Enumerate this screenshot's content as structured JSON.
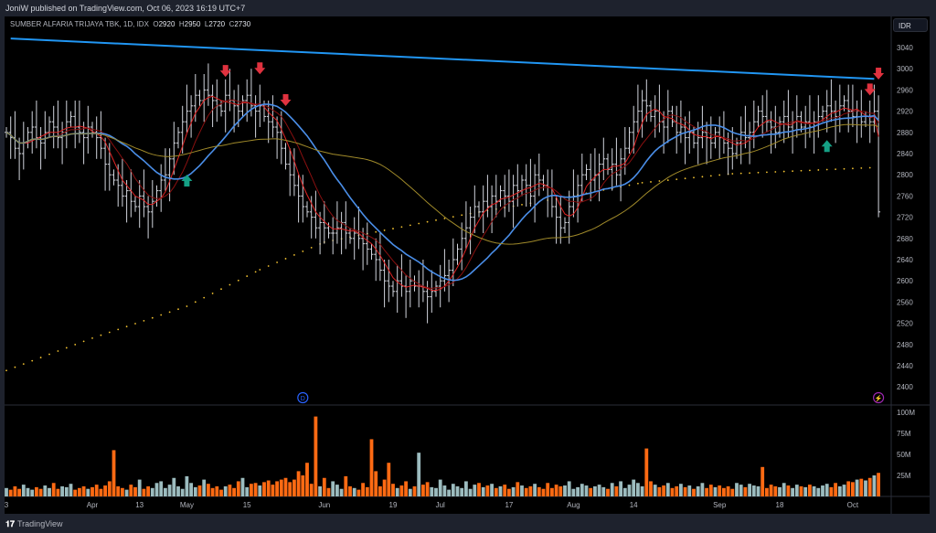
{
  "header": {
    "published": "JoniW published on TradingView.com, Oct 06, 2023 16:19 UTC+7"
  },
  "legend": {
    "symbol": "SUMBER ALFARIA TRIJAYA TBK, 1D, IDX",
    "o_label": "O",
    "o": "2920",
    "h_label": "H",
    "h": "2950",
    "l_label": "L",
    "l": "2720",
    "c_label": "C",
    "c": "2730"
  },
  "currency": "IDR",
  "footer": {
    "brand": "TradingView",
    "logo": "tradingview-logo"
  },
  "colors": {
    "background": "#000000",
    "bar": "#d1d4dc",
    "trendline": "#2196f3",
    "ma_fast": "#e02424",
    "ma_mid": "#8b1010",
    "ma_20": "#4a8ee8",
    "ma_50": "#a08a2a",
    "ma_200": "#f2c230",
    "vol_up": "#9cbcbf",
    "vol_down": "#ff6a13",
    "arrow_down": "#e0323f",
    "arrow_up": "#15a085"
  },
  "chart_data": {
    "type": "ohlc-bar",
    "price_axis": {
      "ylim": [
        2380,
        3060
      ],
      "ticks": [
        3040,
        3000,
        2960,
        2920,
        2880,
        2840,
        2800,
        2760,
        2720,
        2680,
        2640,
        2600,
        2560,
        2520,
        2480,
        2440,
        2400
      ]
    },
    "volume_axis": {
      "ylim": [
        0,
        115
      ],
      "ticks": [
        "100M",
        "75M",
        "50M",
        "25M"
      ],
      "tick_values": [
        100,
        75,
        50,
        25
      ]
    },
    "x_ticks": [
      {
        "label": "3",
        "bar": 0
      },
      {
        "label": "Apr",
        "bar": 20
      },
      {
        "label": "13",
        "bar": 31
      },
      {
        "label": "May",
        "bar": 42
      },
      {
        "label": "15",
        "bar": 56
      },
      {
        "label": "Jun",
        "bar": 74
      },
      {
        "label": "19",
        "bar": 90
      },
      {
        "label": "Jul",
        "bar": 101
      },
      {
        "label": "17",
        "bar": 117
      },
      {
        "label": "Aug",
        "bar": 132
      },
      {
        "label": "14",
        "bar": 146
      },
      {
        "label": "Sep",
        "bar": 166
      },
      {
        "label": "18",
        "bar": 180
      },
      {
        "label": "Oct",
        "bar": 197
      }
    ],
    "close": [
      2880,
      2870,
      2850,
      2840,
      2860,
      2880,
      2890,
      2870,
      2860,
      2880,
      2900,
      2890,
      2870,
      2880,
      2900,
      2910,
      2890,
      2880,
      2870,
      2890,
      2880,
      2870,
      2850,
      2820,
      2800,
      2790,
      2780,
      2760,
      2770,
      2750,
      2740,
      2760,
      2740,
      2730,
      2750,
      2770,
      2790,
      2800,
      2830,
      2860,
      2880,
      2900,
      2920,
      2930,
      2950,
      2940,
      2960,
      2950,
      2940,
      2930,
      2920,
      2950,
      2940,
      2930,
      2920,
      2940,
      2950,
      2930,
      2920,
      2930,
      2910,
      2900,
      2890,
      2880,
      2850,
      2820,
      2800,
      2780,
      2760,
      2740,
      2730,
      2720,
      2700,
      2710,
      2700,
      2690,
      2690,
      2700,
      2710,
      2690,
      2680,
      2690,
      2680,
      2670,
      2660,
      2650,
      2640,
      2620,
      2600,
      2590,
      2580,
      2600,
      2590,
      2580,
      2600,
      2590,
      2590,
      2580,
      2570,
      2580,
      2590,
      2600,
      2610,
      2620,
      2640,
      2660,
      2680,
      2700,
      2720,
      2740,
      2730,
      2750,
      2740,
      2760,
      2750,
      2770,
      2760,
      2750,
      2780,
      2770,
      2790,
      2780,
      2760,
      2800,
      2790,
      2780,
      2760,
      2740,
      2720,
      2700,
      2710,
      2740,
      2760,
      2780,
      2800,
      2810,
      2790,
      2800,
      2820,
      2830,
      2810,
      2820,
      2800,
      2830,
      2850,
      2880,
      2900,
      2920,
      2940,
      2930,
      2910,
      2920,
      2900,
      2890,
      2920,
      2900,
      2880,
      2890,
      2870,
      2880,
      2860,
      2870,
      2880,
      2870,
      2860,
      2880,
      2870,
      2860,
      2850,
      2840,
      2860,
      2880,
      2870,
      2880,
      2900,
      2920,
      2910,
      2900,
      2890,
      2880,
      2900,
      2910,
      2890,
      2900,
      2910,
      2890,
      2900,
      2890,
      2900,
      2910,
      2920,
      2930,
      2920,
      2910,
      2930,
      2940,
      2920,
      2910,
      2920,
      2900,
      2910,
      2900,
      2920,
      2730
    ],
    "volume_m": [
      10,
      8,
      12,
      9,
      14,
      10,
      8,
      11,
      9,
      13,
      10,
      16,
      9,
      12,
      11,
      15,
      8,
      10,
      12,
      9,
      11,
      14,
      9,
      13,
      18,
      55,
      12,
      10,
      8,
      14,
      11,
      20,
      9,
      12,
      10,
      16,
      18,
      10,
      14,
      22,
      12,
      9,
      24,
      16,
      11,
      13,
      20,
      15,
      10,
      12,
      8,
      12,
      14,
      10,
      18,
      22,
      11,
      15,
      16,
      13,
      17,
      19,
      14,
      18,
      20,
      22,
      17,
      20,
      30,
      25,
      40,
      15,
      95,
      12,
      22,
      10,
      18,
      14,
      9,
      24,
      12,
      10,
      8,
      16,
      11,
      68,
      30,
      12,
      20,
      40,
      15,
      10,
      13,
      18,
      9,
      12,
      52,
      14,
      17,
      11,
      10,
      20,
      13,
      8,
      15,
      12,
      10,
      18,
      9,
      14,
      16,
      11,
      13,
      15,
      10,
      12,
      14,
      9,
      11,
      17,
      13,
      10,
      12,
      15,
      11,
      9,
      16,
      10,
      14,
      12,
      13,
      18,
      9,
      11,
      15,
      13,
      10,
      12,
      14,
      11,
      9,
      16,
      12,
      18,
      10,
      14,
      20,
      16,
      12,
      57,
      18,
      14,
      11,
      13,
      16,
      10,
      12,
      15,
      11,
      13,
      9,
      12,
      16,
      10,
      14,
      11,
      13,
      10,
      12,
      9,
      16,
      14,
      11,
      15,
      13,
      12,
      35,
      10,
      14,
      12,
      11,
      16,
      13,
      10,
      14,
      12,
      11,
      14,
      12,
      10,
      13,
      15,
      11,
      16,
      12,
      14,
      18,
      17,
      20,
      21,
      19,
      22,
      25,
      28
    ],
    "last_bar": {
      "open": 2920,
      "high": 2950,
      "low": 2720,
      "close": 2730
    },
    "ma_periods": [
      5,
      10,
      20,
      50
    ],
    "ma200": [
      [
        0,
        2431
      ],
      [
        20,
        2492
      ],
      [
        42,
        2552
      ],
      [
        59,
        2621
      ],
      [
        74,
        2673
      ],
      [
        106,
        2724
      ],
      [
        131,
        2759
      ],
      [
        148,
        2785
      ],
      [
        169,
        2802
      ],
      [
        203,
        2814
      ]
    ],
    "trendline": [
      [
        1,
        3057
      ],
      [
        202,
        2981
      ]
    ],
    "signals": [
      {
        "type": "down",
        "bar": 51,
        "price": 2995
      },
      {
        "type": "down",
        "bar": 59,
        "price": 3000
      },
      {
        "type": "down",
        "bar": 65,
        "price": 2940
      },
      {
        "type": "down",
        "bar": 201,
        "price": 2960
      },
      {
        "type": "down",
        "bar": 203,
        "price": 2990
      },
      {
        "type": "up",
        "bar": 42,
        "price": 2790
      },
      {
        "type": "up",
        "bar": 191,
        "price": 2855
      }
    ],
    "markers": [
      {
        "icon": "dividend-icon",
        "label": "D",
        "bar": 69
      },
      {
        "icon": "lightning-icon",
        "label": "",
        "bar": 203
      }
    ]
  }
}
